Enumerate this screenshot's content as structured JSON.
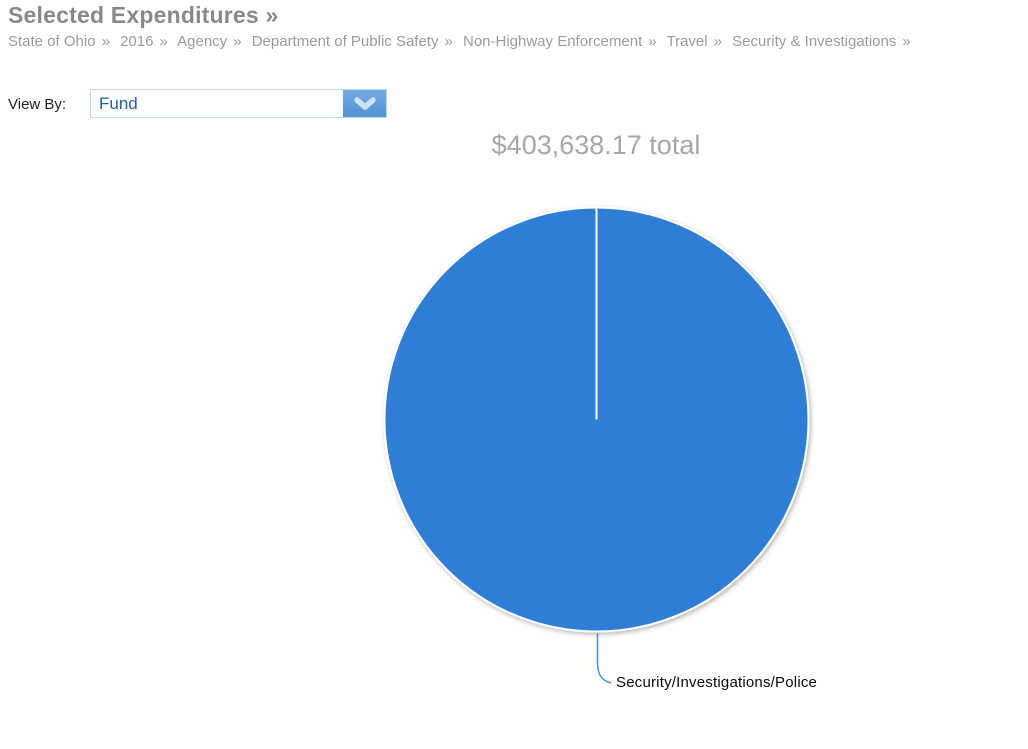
{
  "header": {
    "title": "Selected Expenditures »",
    "breadcrumb_separator": "»",
    "breadcrumb": [
      "State of Ohio",
      "2016",
      "Agency",
      "Department of Public Safety",
      "Non-Highway Enforcement",
      "Travel",
      "Security & Investigations"
    ]
  },
  "controls": {
    "view_by_label": "View By:",
    "view_by_value": "Fund",
    "dropdown_chevron_icon": "chevron-down"
  },
  "chart_data": {
    "type": "pie",
    "title": "$403,638.17 total",
    "total_value": 403638.17,
    "slices": [
      {
        "label": "Security/Investigations/Police",
        "value": 403638.17,
        "percent": 100,
        "color": "#2f7ed8"
      }
    ],
    "slice_border_color": "#ffffff",
    "connector_color": "#4d90dc",
    "legend_position": "none"
  },
  "colors": {
    "pie_blue": "#2f7ed8",
    "dropdown_button_blue": "#5b9bd5",
    "dropdown_border_blue": "#b9dcf2",
    "view_by_value_blue": "#2161a0",
    "title_gray": "#898989",
    "breadcrumb_gray": "#9b9b9b",
    "total_gray": "#a7a7a7",
    "label_black": "#0a0a0a"
  }
}
